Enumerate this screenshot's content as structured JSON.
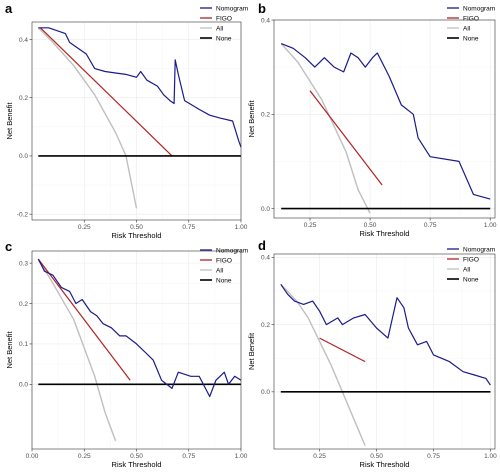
{
  "colors": {
    "Nomogram": "#1a1a8c",
    "FIGO": "#b22222",
    "All": "#bfbfbf",
    "None": "#000000"
  },
  "chart_data": [
    {
      "type": "line",
      "panel": "a",
      "xlabel": "Risk Threshold",
      "ylabel": "Net Benefit",
      "xlim": [
        0.0,
        1.0
      ],
      "ylim": [
        -0.22,
        0.46
      ],
      "xticks": [
        "0.25",
        "0.50",
        "0.75",
        "1.00"
      ],
      "xtick_values": [
        0.25,
        0.5,
        0.75,
        1.0
      ],
      "yticks": [
        "-0.2",
        "0.0",
        "0.2",
        "0.4"
      ],
      "ytick_values": [
        -0.2,
        0.0,
        0.2,
        0.4
      ],
      "legend_position": "top-right",
      "series": [
        {
          "name": "Nomogram",
          "x": [
            0.03,
            0.08,
            0.12,
            0.16,
            0.18,
            0.22,
            0.26,
            0.3,
            0.35,
            0.4,
            0.45,
            0.5,
            0.52,
            0.55,
            0.6,
            0.63,
            0.66,
            0.68,
            0.685,
            0.7,
            0.73,
            0.8,
            0.85,
            0.9,
            0.96,
            0.99,
            1.0
          ],
          "y": [
            0.44,
            0.44,
            0.43,
            0.42,
            0.39,
            0.37,
            0.35,
            0.3,
            0.29,
            0.285,
            0.28,
            0.27,
            0.29,
            0.26,
            0.24,
            0.21,
            0.19,
            0.18,
            0.33,
            0.28,
            0.19,
            0.16,
            0.14,
            0.13,
            0.12,
            0.05,
            0.03
          ]
        },
        {
          "name": "FIGO",
          "x": [
            0.04,
            0.67
          ],
          "y": [
            0.44,
            0.0
          ]
        },
        {
          "name": "All",
          "x": [
            0.03,
            0.1,
            0.2,
            0.3,
            0.4,
            0.45,
            0.5
          ],
          "y": [
            0.44,
            0.39,
            0.31,
            0.21,
            0.08,
            0.0,
            -0.18
          ]
        },
        {
          "name": "None",
          "x": [
            0.03,
            1.0
          ],
          "y": [
            0.0,
            0.0
          ]
        }
      ]
    },
    {
      "type": "line",
      "panel": "b",
      "xlabel": "Risk Threshold",
      "ylabel": "Net Benefit",
      "xlim": [
        0.1,
        1.02
      ],
      "ylim": [
        -0.02,
        0.4
      ],
      "xticks": [
        "0.25",
        "0.50",
        "0.75",
        "1.00"
      ],
      "xtick_values": [
        0.25,
        0.5,
        0.75,
        1.0
      ],
      "yticks": [
        "0.0",
        "0.2",
        "0.4"
      ],
      "ytick_values": [
        0.0,
        0.2,
        0.4
      ],
      "legend_position": "top-right",
      "series": [
        {
          "name": "Nomogram",
          "x": [
            0.13,
            0.18,
            0.23,
            0.27,
            0.31,
            0.35,
            0.39,
            0.42,
            0.45,
            0.48,
            0.51,
            0.53,
            0.56,
            0.58,
            0.63,
            0.68,
            0.7,
            0.75,
            0.87,
            0.93,
            1.0
          ],
          "y": [
            0.35,
            0.34,
            0.32,
            0.3,
            0.32,
            0.3,
            0.29,
            0.33,
            0.32,
            0.3,
            0.32,
            0.33,
            0.3,
            0.28,
            0.22,
            0.2,
            0.15,
            0.11,
            0.1,
            0.03,
            0.02
          ]
        },
        {
          "name": "FIGO",
          "x": [
            0.25,
            0.55
          ],
          "y": [
            0.25,
            0.05
          ]
        },
        {
          "name": "All",
          "x": [
            0.13,
            0.2,
            0.3,
            0.4,
            0.45,
            0.5
          ],
          "y": [
            0.35,
            0.31,
            0.23,
            0.12,
            0.04,
            -0.01
          ]
        },
        {
          "name": "None",
          "x": [
            0.13,
            1.0
          ],
          "y": [
            0.0,
            0.0
          ]
        }
      ]
    },
    {
      "type": "line",
      "panel": "c",
      "xlabel": "Risk Threshold",
      "ylabel": "Net Benefit",
      "xlim": [
        0.0,
        1.0
      ],
      "ylim": [
        -0.16,
        0.33
      ],
      "xticks": [
        "0.00",
        "0.25",
        "0.50",
        "0.75",
        "1.00"
      ],
      "xtick_values": [
        0.0,
        0.25,
        0.5,
        0.75,
        1.0
      ],
      "yticks": [
        "0.0",
        "0.1",
        "0.2",
        "0.3"
      ],
      "ytick_values": [
        0.0,
        0.1,
        0.2,
        0.3
      ],
      "legend_position": "top-right",
      "series": [
        {
          "name": "Nomogram",
          "x": [
            0.03,
            0.06,
            0.1,
            0.14,
            0.18,
            0.21,
            0.24,
            0.28,
            0.31,
            0.34,
            0.38,
            0.42,
            0.45,
            0.5,
            0.54,
            0.58,
            0.62,
            0.67,
            0.7,
            0.76,
            0.8,
            0.85,
            0.88,
            0.92,
            0.94,
            0.97,
            1.0
          ],
          "y": [
            0.31,
            0.28,
            0.27,
            0.24,
            0.23,
            0.2,
            0.21,
            0.18,
            0.17,
            0.15,
            0.14,
            0.12,
            0.12,
            0.1,
            0.08,
            0.06,
            0.01,
            -0.01,
            0.03,
            0.02,
            0.02,
            -0.03,
            0.01,
            0.03,
            0.0,
            0.02,
            0.01
          ]
        },
        {
          "name": "FIGO",
          "x": [
            0.03,
            0.47
          ],
          "y": [
            0.31,
            0.01
          ]
        },
        {
          "name": "All",
          "x": [
            0.03,
            0.1,
            0.2,
            0.3,
            0.35,
            0.4
          ],
          "y": [
            0.31,
            0.25,
            0.16,
            0.02,
            -0.07,
            -0.14
          ]
        },
        {
          "name": "None",
          "x": [
            0.03,
            1.0
          ],
          "y": [
            0.0,
            0.0
          ]
        }
      ]
    },
    {
      "type": "line",
      "panel": "d",
      "xlabel": "Risk Threshold",
      "ylabel": "Net Benefit",
      "xlim": [
        0.05,
        1.02
      ],
      "ylim": [
        -0.17,
        0.41
      ],
      "xticks": [
        "0.25",
        "0.50",
        "0.75",
        "1.00"
      ],
      "xtick_values": [
        0.25,
        0.5,
        0.75,
        1.0
      ],
      "yticks": [
        "0.0",
        "0.2",
        "0.4"
      ],
      "ytick_values": [
        0.0,
        0.2,
        0.4
      ],
      "legend_position": "top-right",
      "series": [
        {
          "name": "Nomogram",
          "x": [
            0.08,
            0.11,
            0.14,
            0.18,
            0.22,
            0.25,
            0.28,
            0.33,
            0.35,
            0.4,
            0.45,
            0.5,
            0.55,
            0.59,
            0.62,
            0.64,
            0.68,
            0.72,
            0.75,
            0.82,
            0.88,
            0.93,
            0.98,
            1.0
          ],
          "y": [
            0.32,
            0.29,
            0.27,
            0.26,
            0.27,
            0.24,
            0.2,
            0.22,
            0.2,
            0.22,
            0.23,
            0.19,
            0.16,
            0.28,
            0.25,
            0.19,
            0.14,
            0.15,
            0.11,
            0.09,
            0.06,
            0.05,
            0.04,
            0.02
          ]
        },
        {
          "name": "FIGO",
          "x": [
            0.25,
            0.45
          ],
          "y": [
            0.16,
            0.09
          ]
        },
        {
          "name": "All",
          "x": [
            0.08,
            0.15,
            0.2,
            0.25,
            0.3,
            0.35,
            0.4,
            0.45
          ],
          "y": [
            0.32,
            0.27,
            0.22,
            0.15,
            0.08,
            0.0,
            -0.08,
            -0.16
          ]
        },
        {
          "name": "None",
          "x": [
            0.08,
            1.0
          ],
          "y": [
            0.0,
            0.0
          ]
        }
      ]
    }
  ]
}
